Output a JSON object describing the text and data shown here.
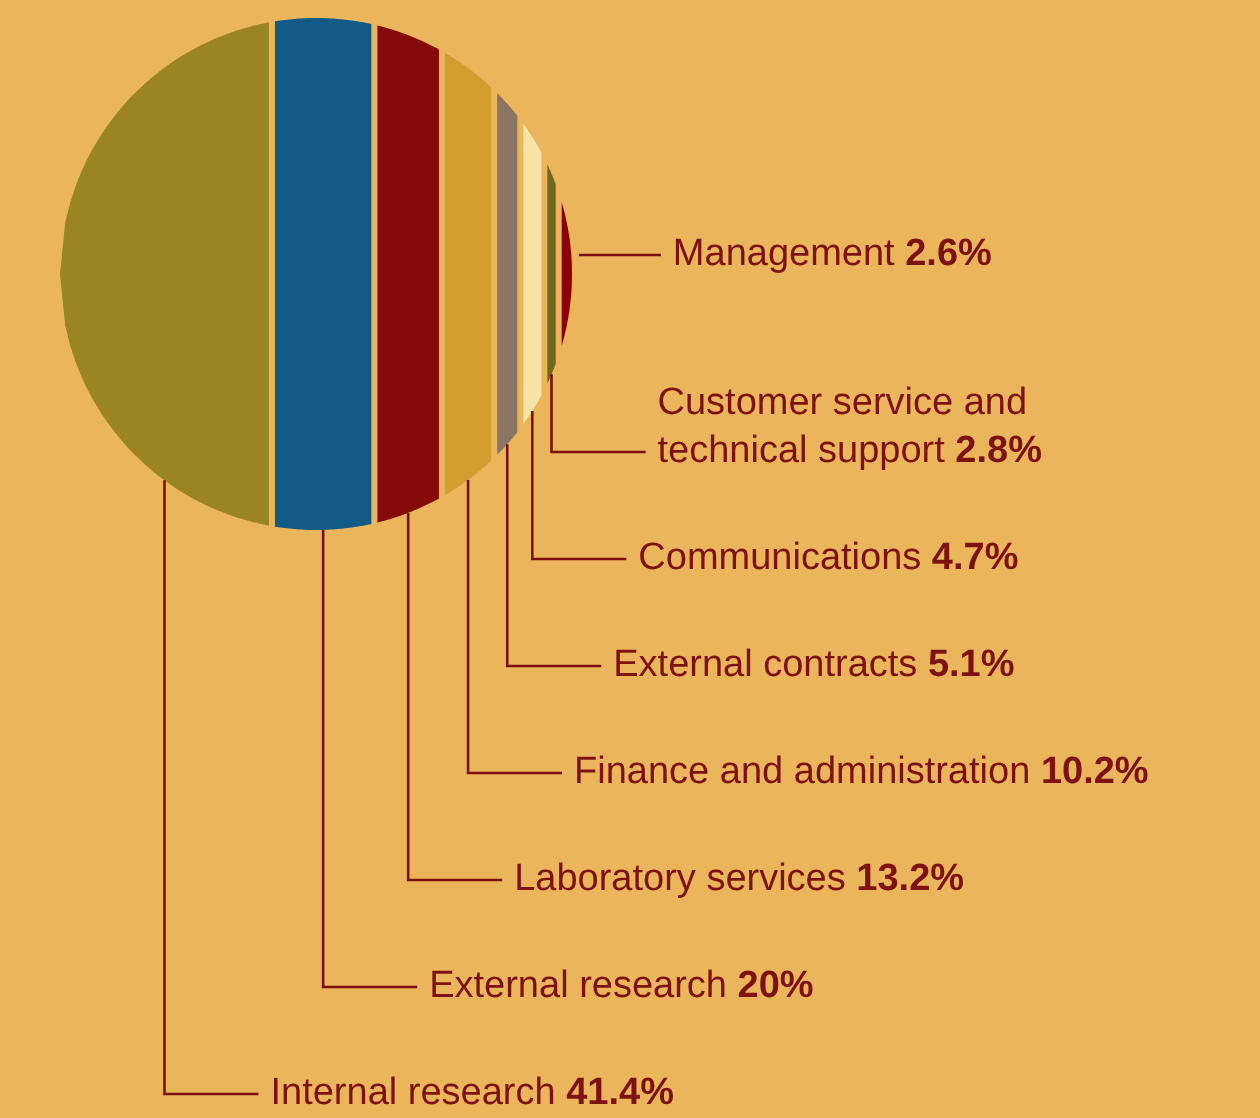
{
  "chart_data": {
    "type": "other",
    "categories": [
      "Internal research",
      "External research",
      "Laboratory services",
      "Finance and administration",
      "External contracts",
      "Communications",
      "Customer service and\ntechnical support",
      "Management"
    ],
    "values": [
      41.4,
      20,
      13.2,
      10.2,
      5.1,
      4.7,
      2.8,
      2.6
    ],
    "value_labels": [
      "41.4%",
      "20%",
      "13.2%",
      "10.2%",
      "5.1%",
      "4.7%",
      "2.8%",
      "2.6%"
    ],
    "colors": [
      "#9a8423",
      "#135b87",
      "#850b0b",
      "#d39e2f",
      "#8a7462",
      "#f6e3a6",
      "#6d6a1d",
      "#8b0000"
    ]
  }
}
